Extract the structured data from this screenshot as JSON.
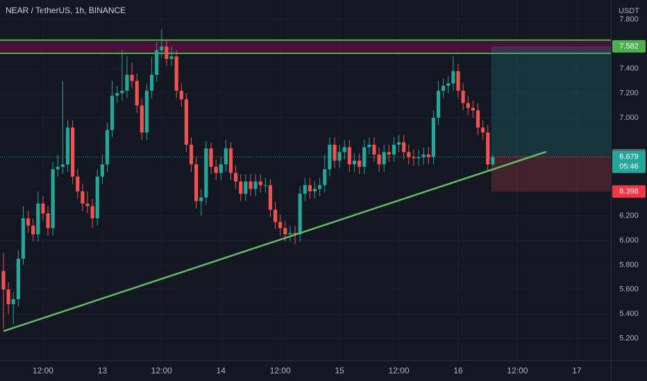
{
  "chart_data": {
    "type": "candlestick",
    "title": "NEAR / TetherUS, 1h, BINANCE",
    "y_unit": "USDT",
    "colors": {
      "up": "#26a69a",
      "down": "#ef5350",
      "zone": "#4caf50",
      "trendline": "#66bb6a"
    },
    "xlim": [
      -0.7,
      122.9
    ],
    "xticks": [
      {
        "value": 8,
        "label": "12:00"
      },
      {
        "value": 20,
        "label": "13"
      },
      {
        "value": 32,
        "label": "12:00"
      },
      {
        "value": 44,
        "label": "14"
      },
      {
        "value": 56,
        "label": "12:00"
      },
      {
        "value": 68,
        "label": "15"
      },
      {
        "value": 80,
        "label": "12:00"
      },
      {
        "value": 92,
        "label": "16"
      },
      {
        "value": 104,
        "label": "12:00"
      },
      {
        "value": 116,
        "label": "17"
      }
    ],
    "ylim": [
      5.023,
      7.96
    ],
    "yticks": [
      {
        "value": 7.8,
        "label": "7.800"
      },
      {
        "value": 7.4,
        "label": "7.400"
      },
      {
        "value": 7.2,
        "label": "7.200"
      },
      {
        "value": 7.0,
        "label": "7.000"
      },
      {
        "value": 6.2,
        "label": "6.200"
      },
      {
        "value": 6.0,
        "label": "6.000"
      },
      {
        "value": 5.8,
        "label": "5.800"
      },
      {
        "value": 5.6,
        "label": "5.600"
      },
      {
        "value": 5.4,
        "label": "5.400"
      },
      {
        "value": 5.2,
        "label": "5.200"
      }
    ],
    "open": [
      5.75,
      5.6,
      5.48,
      5.52,
      5.85,
      6.18,
      6.12,
      6.05,
      6.3,
      6.22,
      6.1,
      6.58,
      6.6,
      6.62,
      6.92,
      6.52,
      6.4,
      6.3,
      6.28,
      6.18,
      6.52,
      6.62,
      6.9,
      7.18,
      7.2,
      7.22,
      7.35,
      7.3,
      7.1,
      6.88,
      7.22,
      7.35,
      7.55,
      7.58,
      7.48,
      7.5,
      7.22,
      7.15,
      6.78,
      6.62,
      6.32,
      6.35,
      6.75,
      6.6,
      6.55,
      6.62,
      6.75,
      6.55,
      6.48,
      6.38,
      6.48,
      6.42,
      6.48,
      6.45,
      6.45,
      6.25,
      6.15,
      6.1,
      6.05,
      6.06,
      6.05,
      6.38,
      6.45,
      6.4,
      6.42,
      6.45,
      6.58,
      6.78,
      6.65,
      6.72,
      6.76,
      6.62,
      6.65,
      6.6,
      6.76,
      6.78,
      6.7,
      6.62,
      6.72,
      6.7,
      6.78,
      6.8,
      6.72,
      6.68,
      6.67,
      6.68,
      6.7,
      6.68,
      7.0,
      7.22,
      7.26,
      7.28,
      7.38,
      7.22,
      7.12,
      7.08,
      7.06,
      6.92,
      6.88,
      6.62
    ],
    "high": [
      5.9,
      5.66,
      5.58,
      5.92,
      6.28,
      6.24,
      6.18,
      6.4,
      6.36,
      6.28,
      6.64,
      6.7,
      7.3,
      6.98,
      6.98,
      6.58,
      6.46,
      6.4,
      6.34,
      6.58,
      6.7,
      6.96,
      7.3,
      7.26,
      7.55,
      7.5,
      7.45,
      7.36,
      7.16,
      7.28,
      7.5,
      7.62,
      7.72,
      7.64,
      7.58,
      7.55,
      7.28,
      7.2,
      6.84,
      6.68,
      6.42,
      6.81,
      6.8,
      6.66,
      6.68,
      6.82,
      6.8,
      6.61,
      6.54,
      6.54,
      6.54,
      6.54,
      6.54,
      6.51,
      6.5,
      6.31,
      6.21,
      6.16,
      6.12,
      6.12,
      6.44,
      6.51,
      6.51,
      6.48,
      6.51,
      6.7,
      6.84,
      6.84,
      6.78,
      6.82,
      6.82,
      6.71,
      6.71,
      6.82,
      6.84,
      6.84,
      6.76,
      6.78,
      6.78,
      6.84,
      6.86,
      6.86,
      6.78,
      6.74,
      6.74,
      6.76,
      6.76,
      7.06,
      7.3,
      7.32,
      7.34,
      7.5,
      7.44,
      7.28,
      7.18,
      7.14,
      7.12,
      6.98,
      6.94,
      6.7
    ],
    "low": [
      5.28,
      5.4,
      5.32,
      5.46,
      5.8,
      6.06,
      5.99,
      5.99,
      6.16,
      6.04,
      6.04,
      6.52,
      6.54,
      6.56,
      6.46,
      6.34,
      6.24,
      6.22,
      6.1,
      6.12,
      6.46,
      6.56,
      6.84,
      7.12,
      7.14,
      7.16,
      7.24,
      7.04,
      6.82,
      6.82,
      7.16,
      7.29,
      7.49,
      7.42,
      7.42,
      7.16,
      7.09,
      6.72,
      6.56,
      6.26,
      6.2,
      6.29,
      6.54,
      6.49,
      6.49,
      6.56,
      6.49,
      6.42,
      6.32,
      6.32,
      6.36,
      6.36,
      6.39,
      6.39,
      6.19,
      6.09,
      6.04,
      5.99,
      5.99,
      5.97,
      5.99,
      6.32,
      6.34,
      6.34,
      6.36,
      6.39,
      6.52,
      6.59,
      6.59,
      6.66,
      6.56,
      6.56,
      6.54,
      6.54,
      6.7,
      6.64,
      6.56,
      6.56,
      6.64,
      6.64,
      6.72,
      6.66,
      6.62,
      6.61,
      6.61,
      6.62,
      6.62,
      6.62,
      6.94,
      7.16,
      7.2,
      7.22,
      7.16,
      7.06,
      7.02,
      7.0,
      6.86,
      6.82,
      6.56,
      6.6
    ],
    "close": [
      5.6,
      5.48,
      5.52,
      5.85,
      6.18,
      6.12,
      6.05,
      6.3,
      6.22,
      6.1,
      6.58,
      6.6,
      6.62,
      6.92,
      6.52,
      6.4,
      6.3,
      6.28,
      6.18,
      6.52,
      6.62,
      6.9,
      7.18,
      7.2,
      7.22,
      7.35,
      7.3,
      7.1,
      6.88,
      7.22,
      7.35,
      7.55,
      7.58,
      7.48,
      7.5,
      7.22,
      7.15,
      6.78,
      6.62,
      6.32,
      6.35,
      6.75,
      6.6,
      6.55,
      6.62,
      6.75,
      6.55,
      6.48,
      6.38,
      6.48,
      6.42,
      6.48,
      6.45,
      6.45,
      6.25,
      6.15,
      6.1,
      6.05,
      6.06,
      6.05,
      6.38,
      6.45,
      6.4,
      6.42,
      6.45,
      6.58,
      6.78,
      6.65,
      6.72,
      6.76,
      6.62,
      6.65,
      6.6,
      6.76,
      6.78,
      6.7,
      6.62,
      6.72,
      6.7,
      6.78,
      6.8,
      6.72,
      6.68,
      6.67,
      6.68,
      6.7,
      6.68,
      7.0,
      7.22,
      7.26,
      7.28,
      7.38,
      7.22,
      7.12,
      7.08,
      7.06,
      6.92,
      6.88,
      6.62,
      6.679
    ],
    "last_price": 6.679,
    "countdown": "05:46",
    "resistance_zone": {
      "top": 7.633,
      "bottom": 7.525
    },
    "long_position": {
      "x": [
        98.7,
        122.9
      ],
      "target": 7.582,
      "entry": 6.694,
      "stop": 6.398
    },
    "trendline": {
      "x": [
        0,
        109.8
      ],
      "y": [
        5.26,
        6.723
      ]
    }
  }
}
